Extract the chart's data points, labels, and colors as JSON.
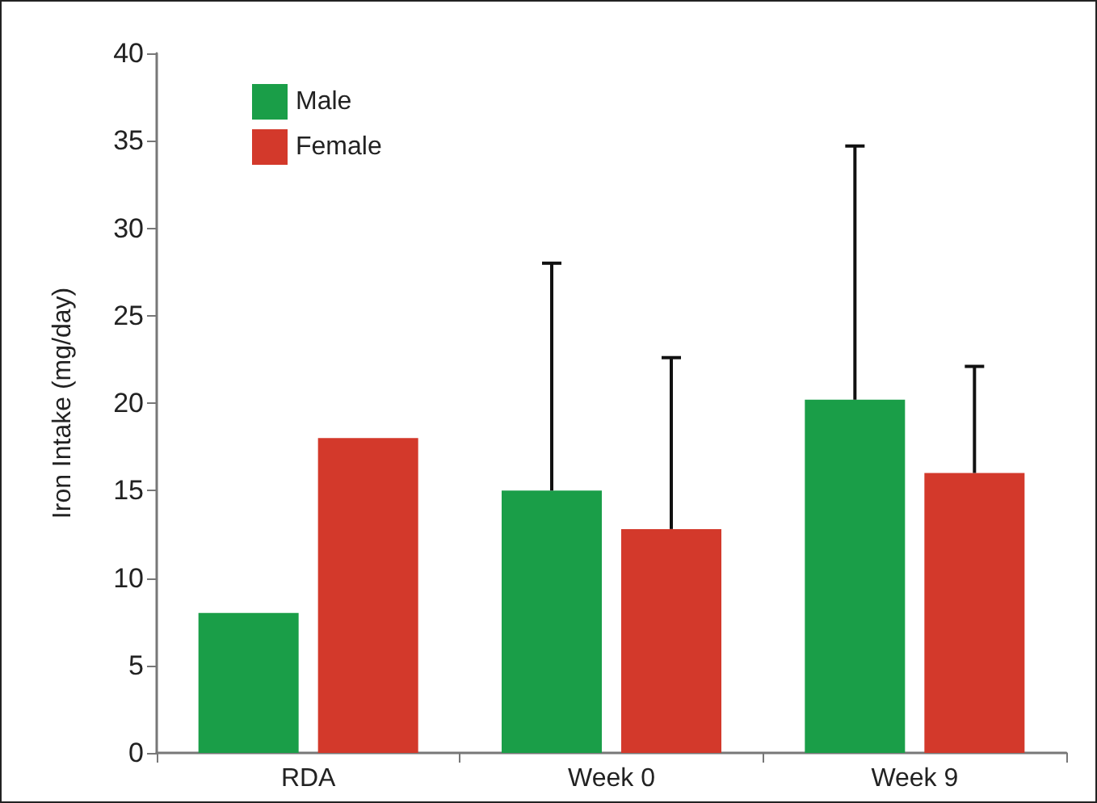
{
  "chart_data": {
    "type": "bar",
    "ylabel": "Iron Intake (mg/day)",
    "categories": [
      "RDA",
      "Week 0",
      "Week 9"
    ],
    "series": [
      {
        "name": "Male",
        "color": "#1a9e48",
        "values": [
          8,
          15,
          20.2
        ],
        "errors": [
          null,
          [
            15,
            28
          ],
          [
            20.2,
            34.7
          ]
        ]
      },
      {
        "name": "Female",
        "color": "#d3392b",
        "values": [
          18,
          12.8,
          16
        ],
        "errors": [
          null,
          [
            12.8,
            22.6
          ],
          [
            16,
            22.1
          ]
        ]
      }
    ],
    "ylim": [
      0,
      40
    ],
    "yticks": [
      0,
      5,
      10,
      15,
      20,
      25,
      30,
      35,
      40
    ],
    "grid": false,
    "legend": "top left"
  }
}
